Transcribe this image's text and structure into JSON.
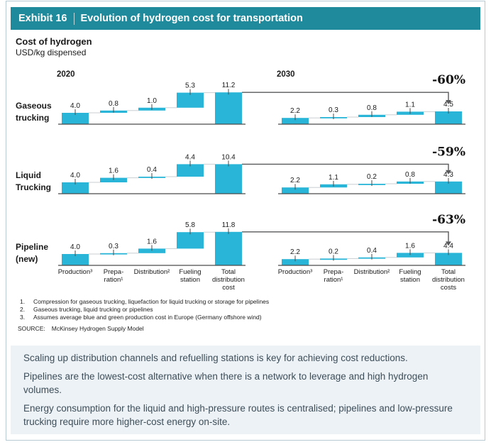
{
  "header": {
    "exhibit_label": "Exhibit 16",
    "title": "Evolution of hydrogen cost for transportation"
  },
  "chart_heading": {
    "title": "Cost of hydrogen",
    "subtitle": "USD/kg dispensed"
  },
  "chart_data": {
    "type": "bar",
    "subtype": "waterfall_comparison",
    "title": "Cost of hydrogen",
    "ylabel": "USD/kg dispensed",
    "grid": false,
    "groups": [
      "2020",
      "2030"
    ],
    "categories_2020": [
      "Production³",
      "Prepa-\nration¹",
      "Distribution²",
      "Fueling\nstation",
      "Total\ndistribution\ncost"
    ],
    "categories_2030": [
      "Production³",
      "Prepa-\nration¹",
      "Distribution²",
      "Fueling\nstation",
      "Total\ndistribution\ncosts"
    ],
    "rows": [
      {
        "label": "Gaseous\ntrucking",
        "change_pct": "-60%",
        "y2020": {
          "steps": [
            4.0,
            0.8,
            1.0,
            5.3
          ],
          "total": 11.2
        },
        "y2030": {
          "steps": [
            2.2,
            0.3,
            0.8,
            1.1
          ],
          "total": 4.5
        }
      },
      {
        "label": "Liquid\nTrucking",
        "change_pct": "-59%",
        "y2020": {
          "steps": [
            4.0,
            1.6,
            0.4,
            4.4
          ],
          "total": 10.4
        },
        "y2030": {
          "steps": [
            2.2,
            1.1,
            0.2,
            0.8
          ],
          "total": 4.3
        }
      },
      {
        "label": "Pipeline\n(new)",
        "change_pct": "-63%",
        "y2020": {
          "steps": [
            4.0,
            0.3,
            1.6,
            5.8
          ],
          "total": 11.8
        },
        "y2030": {
          "steps": [
            2.2,
            0.2,
            0.4,
            1.6
          ],
          "total": 4.4
        }
      }
    ]
  },
  "footnotes": [
    {
      "num": "1.",
      "text": "Compression for gaseous trucking, liquefaction for liquid trucking or storage for pipelines"
    },
    {
      "num": "2.",
      "text": "Gaseous trucking, liquid trucking or pipelines"
    },
    {
      "num": "3.",
      "text": "Assumes average blue and green production cost in Europe (Germany offshore wind)"
    }
  ],
  "source": {
    "label": "SOURCE:",
    "text": "McKinsey Hydrogen Supply Model"
  },
  "takeaways": [
    "Scaling up distribution channels and refuelling stations is key for achieving cost reductions.",
    "Pipelines are the lowest-cost alternative when there is a network to leverage and high hydrogen volumes.",
    "Energy consumption for the liquid and high-pressure routes is centralised; pipelines and low-pressure trucking require more higher-cost energy on-site."
  ],
  "colors": {
    "header_teal": "#1F8A9B",
    "bar_cyan": "#29B5D8",
    "panel_bg": "#ECF2F6",
    "panel_text": "#3E4E59",
    "arrow_gray": "#58595B",
    "baseline": "#4a4a4a",
    "connector": "#c9ced1"
  }
}
